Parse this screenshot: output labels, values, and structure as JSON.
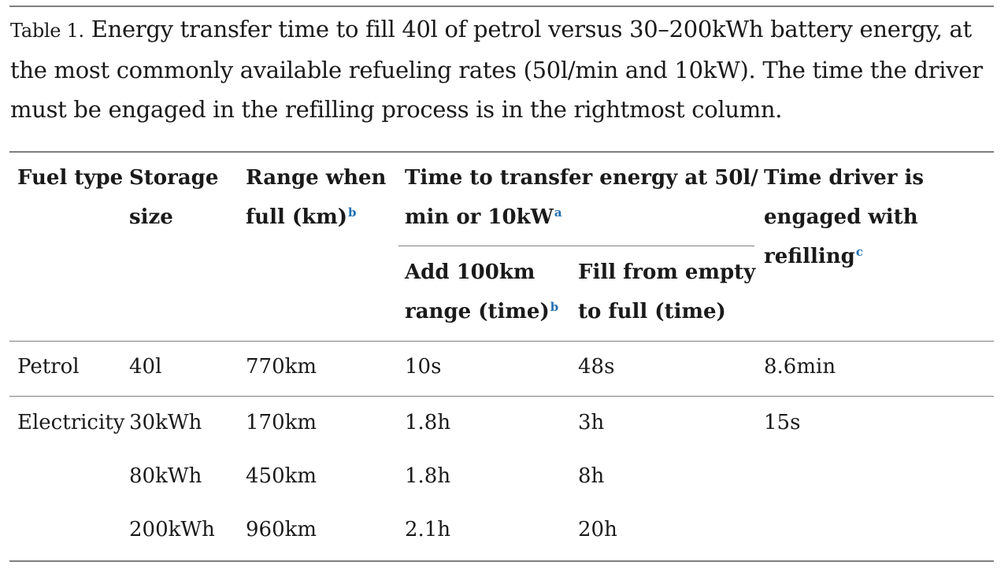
{
  "caption": {
    "label": "Table 1.",
    "text": "Energy transfer time to fill 40l of petrol versus 30–200kWh battery energy, at the most commonly available refueling rates (50l/min and 10kW). The time the driver must be engaged in the refilling process is in the rightmost column."
  },
  "headers": {
    "fuel_type": "Fuel type",
    "storage_size_1": "Storage",
    "storage_size_2": "size",
    "range_1": "Range when",
    "range_2": "full (km)",
    "range_fn": "b",
    "transfer_1": "Time to transfer energy at 50l/",
    "transfer_2": "min or 10kW",
    "transfer_fn": "a",
    "add_range_1": "Add 100km",
    "add_range_2": "range (time)",
    "add_range_fn": "b",
    "fill_1": "Fill from empty",
    "fill_2": "to full (time)",
    "engaged_1": "Time driver is",
    "engaged_2": "engaged with",
    "engaged_3": "refilling",
    "engaged_fn": "c"
  },
  "rows": [
    {
      "fuel": "Petrol",
      "storage": "40l",
      "range": "770km",
      "add": "10s",
      "fill": "48s",
      "engaged": "8.6min"
    },
    {
      "fuel": "Electricity",
      "storage": "30kWh",
      "range": "170km",
      "add": "1.8h",
      "fill": "3h",
      "engaged": "15s"
    },
    {
      "fuel": "",
      "storage": "80kWh",
      "range": "450km",
      "add": "1.8h",
      "fill": "8h",
      "engaged": ""
    },
    {
      "fuel": "",
      "storage": "200kWh",
      "range": "960km",
      "add": "2.1h",
      "fill": "20h",
      "engaged": ""
    }
  ]
}
